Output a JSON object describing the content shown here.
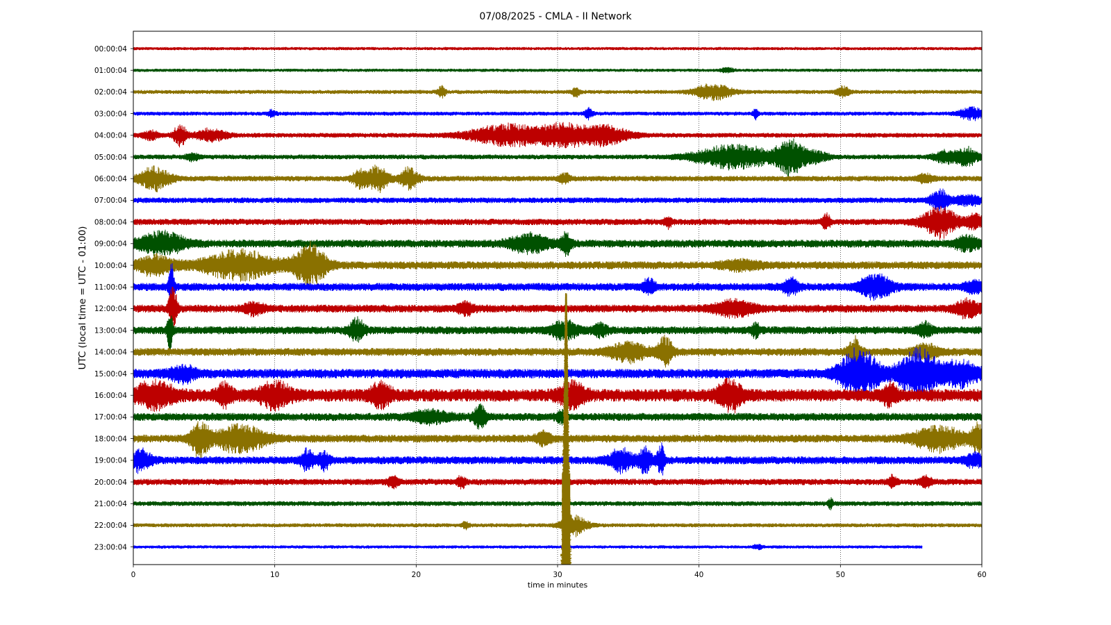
{
  "chart_data": {
    "type": "line",
    "title": "07/08/2025 - CMLA - II Network",
    "xlabel": "time in minutes",
    "ylabel": "UTC (local time = UTC - 01:00)",
    "xlim": [
      0,
      60
    ],
    "x_ticks": [
      "0",
      "10",
      "20",
      "30",
      "40",
      "50",
      "60"
    ],
    "grid": "vertical dotted at 10-minute intervals",
    "colors": [
      "#bd0000",
      "#005100",
      "#8a7100",
      "#0000ff"
    ],
    "series": [
      {
        "label": "00:00:04",
        "color": "#bd0000",
        "end_minute": 60,
        "noise": 2,
        "events": []
      },
      {
        "label": "01:00:04",
        "color": "#005100",
        "end_minute": 60,
        "noise": 2,
        "events": [
          {
            "minute": 42,
            "amp": 3,
            "dur": 0.5
          }
        ]
      },
      {
        "label": "02:00:04",
        "color": "#8a7100",
        "end_minute": 60,
        "noise": 2.5,
        "events": [
          {
            "minute": 21.8,
            "amp": 8,
            "dur": 0.3
          },
          {
            "minute": 31.3,
            "amp": 6,
            "dur": 0.3
          },
          {
            "minute": 41,
            "amp": 10,
            "dur": 1.5
          },
          {
            "minute": 50.2,
            "amp": 7,
            "dur": 0.5
          }
        ]
      },
      {
        "label": "03:00:04",
        "color": "#0000ff",
        "end_minute": 60,
        "noise": 2.5,
        "events": [
          {
            "minute": 9.8,
            "amp": 5,
            "dur": 0.3
          },
          {
            "minute": 32.2,
            "amp": 7,
            "dur": 0.3
          },
          {
            "minute": 44,
            "amp": 7,
            "dur": 0.2
          },
          {
            "minute": 59.3,
            "amp": 8,
            "dur": 1
          }
        ]
      },
      {
        "label": "04:00:04",
        "color": "#bd0000",
        "end_minute": 60,
        "noise": 3,
        "events": [
          {
            "minute": 1.2,
            "amp": 6,
            "dur": 0.6
          },
          {
            "minute": 3.3,
            "amp": 15,
            "dur": 0.5
          },
          {
            "minute": 5.5,
            "amp": 8,
            "dur": 1.2
          },
          {
            "minute": 26.5,
            "amp": 14,
            "dur": 3
          },
          {
            "minute": 30.5,
            "amp": 14,
            "dur": 2
          },
          {
            "minute": 33.5,
            "amp": 12,
            "dur": 1.8
          }
        ]
      },
      {
        "label": "05:00:04",
        "color": "#005100",
        "end_minute": 60,
        "noise": 3,
        "events": [
          {
            "minute": 4.2,
            "amp": 5,
            "dur": 0.5
          },
          {
            "minute": 42.5,
            "amp": 16,
            "dur": 3
          },
          {
            "minute": 46.4,
            "amp": 22,
            "dur": 1
          },
          {
            "minute": 48,
            "amp": 8,
            "dur": 1.2
          },
          {
            "minute": 57.5,
            "amp": 8,
            "dur": 1
          },
          {
            "minute": 59,
            "amp": 12,
            "dur": 0.8
          }
        ]
      },
      {
        "label": "06:00:04",
        "color": "#8a7100",
        "end_minute": 60,
        "noise": 3.5,
        "events": [
          {
            "minute": 1.5,
            "amp": 15,
            "dur": 1.2
          },
          {
            "minute": 16,
            "amp": 12,
            "dur": 0.6
          },
          {
            "minute": 17.3,
            "amp": 16,
            "dur": 0.8
          },
          {
            "minute": 19.5,
            "amp": 14,
            "dur": 0.7
          },
          {
            "minute": 30.5,
            "amp": 7,
            "dur": 0.4
          },
          {
            "minute": 56,
            "amp": 6,
            "dur": 0.6
          }
        ]
      },
      {
        "label": "07:00:04",
        "color": "#0000ff",
        "end_minute": 60,
        "noise": 3.5,
        "events": [
          {
            "minute": 57,
            "amp": 14,
            "dur": 0.7
          },
          {
            "minute": 59,
            "amp": 7,
            "dur": 1
          }
        ]
      },
      {
        "label": "08:00:04",
        "color": "#bd0000",
        "end_minute": 60,
        "noise": 4,
        "events": [
          {
            "minute": 37.8,
            "amp": 8,
            "dur": 0.3
          },
          {
            "minute": 49,
            "amp": 10,
            "dur": 0.3
          },
          {
            "minute": 57,
            "amp": 20,
            "dur": 1.3
          },
          {
            "minute": 59.5,
            "amp": 9,
            "dur": 0.8
          }
        ]
      },
      {
        "label": "09:00:04",
        "color": "#005100",
        "end_minute": 60,
        "noise": 5,
        "events": [
          {
            "minute": 2,
            "amp": 14,
            "dur": 1.8
          },
          {
            "minute": 28,
            "amp": 12,
            "dur": 1.5
          },
          {
            "minute": 30.6,
            "amp": 14,
            "dur": 0.4
          },
          {
            "minute": 59,
            "amp": 9,
            "dur": 1
          }
        ]
      },
      {
        "label": "10:00:04",
        "color": "#8a7100",
        "end_minute": 60,
        "noise": 5,
        "events": [
          {
            "minute": 1.5,
            "amp": 12,
            "dur": 1.5
          },
          {
            "minute": 7.5,
            "amp": 18,
            "dur": 3
          },
          {
            "minute": 12.5,
            "amp": 28,
            "dur": 1.2
          },
          {
            "minute": 43,
            "amp": 6,
            "dur": 1.5
          }
        ]
      },
      {
        "label": "11:00:04",
        "color": "#0000ff",
        "end_minute": 60,
        "noise": 5,
        "events": [
          {
            "minute": 2.7,
            "amp": 34,
            "dur": 0.2
          },
          {
            "minute": 36.5,
            "amp": 10,
            "dur": 0.5
          },
          {
            "minute": 46.5,
            "amp": 10,
            "dur": 0.6
          },
          {
            "minute": 52.5,
            "amp": 16,
            "dur": 1.2
          },
          {
            "minute": 59.5,
            "amp": 7,
            "dur": 0.8
          }
        ]
      },
      {
        "label": "12:00:04",
        "color": "#bd0000",
        "end_minute": 60,
        "noise": 5,
        "events": [
          {
            "minute": 2.8,
            "amp": 30,
            "dur": 0.3
          },
          {
            "minute": 8.5,
            "amp": 7,
            "dur": 0.8
          },
          {
            "minute": 23.5,
            "amp": 8,
            "dur": 0.6
          },
          {
            "minute": 42.5,
            "amp": 10,
            "dur": 1.5
          },
          {
            "minute": 59,
            "amp": 11,
            "dur": 1
          }
        ]
      },
      {
        "label": "13:00:04",
        "color": "#005100",
        "end_minute": 60,
        "noise": 5,
        "events": [
          {
            "minute": 2.6,
            "amp": 28,
            "dur": 0.2
          },
          {
            "minute": 15.8,
            "amp": 14,
            "dur": 0.6
          },
          {
            "minute": 30.5,
            "amp": 12,
            "dur": 1
          },
          {
            "minute": 33,
            "amp": 8,
            "dur": 0.6
          },
          {
            "minute": 44,
            "amp": 9,
            "dur": 0.3
          },
          {
            "minute": 56,
            "amp": 9,
            "dur": 0.6
          }
        ]
      },
      {
        "label": "14:00:04",
        "color": "#8a7100",
        "end_minute": 60,
        "noise": 5,
        "events": [
          {
            "minute": 35,
            "amp": 12,
            "dur": 1.5
          },
          {
            "minute": 37.6,
            "amp": 18,
            "dur": 0.6
          },
          {
            "minute": 51,
            "amp": 18,
            "dur": 0.5
          },
          {
            "minute": 56,
            "amp": 10,
            "dur": 1
          }
        ]
      },
      {
        "label": "15:00:04",
        "color": "#0000ff",
        "end_minute": 60,
        "noise": 6,
        "events": [
          {
            "minute": 3.5,
            "amp": 10,
            "dur": 1
          },
          {
            "minute": 51.3,
            "amp": 34,
            "dur": 1.5
          },
          {
            "minute": 55.5,
            "amp": 32,
            "dur": 1.5
          },
          {
            "minute": 58.5,
            "amp": 16,
            "dur": 1.5
          }
        ]
      },
      {
        "label": "16:00:04",
        "color": "#bd0000",
        "end_minute": 60,
        "noise": 8,
        "events": [
          {
            "minute": 1.5,
            "amp": 16,
            "dur": 1.5
          },
          {
            "minute": 6.5,
            "amp": 14,
            "dur": 0.6
          },
          {
            "minute": 10,
            "amp": 15,
            "dur": 1.2
          },
          {
            "minute": 17.5,
            "amp": 14,
            "dur": 0.8
          },
          {
            "minute": 31,
            "amp": 16,
            "dur": 1
          },
          {
            "minute": 42.2,
            "amp": 18,
            "dur": 1
          },
          {
            "minute": 53.5,
            "amp": 14,
            "dur": 0.5
          }
        ]
      },
      {
        "label": "17:00:04",
        "color": "#005100",
        "end_minute": 60,
        "noise": 5,
        "events": [
          {
            "minute": 21,
            "amp": 8,
            "dur": 1.5
          },
          {
            "minute": 24.5,
            "amp": 14,
            "dur": 0.5
          },
          {
            "minute": 30.3,
            "amp": 8,
            "dur": 0.4
          }
        ]
      },
      {
        "label": "18:00:04",
        "color": "#8a7100",
        "end_minute": 60,
        "noise": 5,
        "events": [
          {
            "minute": 4.7,
            "amp": 22,
            "dur": 0.7
          },
          {
            "minute": 7.5,
            "amp": 18,
            "dur": 2
          },
          {
            "minute": 29,
            "amp": 8,
            "dur": 0.6
          },
          {
            "minute": 57,
            "amp": 16,
            "dur": 2
          },
          {
            "minute": 59.7,
            "amp": 18,
            "dur": 0.5
          }
        ]
      },
      {
        "label": "19:00:04",
        "color": "#0000ff",
        "end_minute": 60,
        "noise": 5,
        "events": [
          {
            "minute": 0.5,
            "amp": 14,
            "dur": 0.8
          },
          {
            "minute": 12.3,
            "amp": 14,
            "dur": 0.5
          },
          {
            "minute": 13.5,
            "amp": 12,
            "dur": 0.4
          },
          {
            "minute": 34.5,
            "amp": 14,
            "dur": 1
          },
          {
            "minute": 36.2,
            "amp": 16,
            "dur": 0.5
          },
          {
            "minute": 37.3,
            "amp": 20,
            "dur": 0.3
          },
          {
            "minute": 59.5,
            "amp": 8,
            "dur": 0.8
          }
        ]
      },
      {
        "label": "20:00:04",
        "color": "#bd0000",
        "end_minute": 60,
        "noise": 4,
        "events": [
          {
            "minute": 18.4,
            "amp": 6,
            "dur": 0.5
          },
          {
            "minute": 23.2,
            "amp": 8,
            "dur": 0.3
          },
          {
            "minute": 53.7,
            "amp": 8,
            "dur": 0.3
          },
          {
            "minute": 56,
            "amp": 6,
            "dur": 0.5
          }
        ]
      },
      {
        "label": "21:00:04",
        "color": "#005100",
        "end_minute": 60,
        "noise": 3,
        "events": [
          {
            "minute": 49.3,
            "amp": 8,
            "dur": 0.2
          }
        ]
      },
      {
        "label": "22:00:04",
        "color": "#8a7100",
        "end_minute": 60,
        "noise": 2.5,
        "events": [
          {
            "minute": 23.5,
            "amp": 5,
            "dur": 0.3
          },
          {
            "minute": 31.2,
            "amp": 14,
            "dur": 1
          }
        ]
      },
      {
        "label": "23:00:04",
        "color": "#0000ff",
        "end_minute": 55.8,
        "noise": 2,
        "events": [
          {
            "minute": 44.2,
            "amp": 3,
            "dur": 0.4
          }
        ]
      }
    ],
    "big_event": {
      "minute": 30.6,
      "color": "#8a7100",
      "description_hidden": true,
      "rows": [
        12,
        13,
        14,
        15,
        16,
        17,
        18,
        19,
        20,
        21,
        22,
        23
      ],
      "amp": 6
    }
  }
}
